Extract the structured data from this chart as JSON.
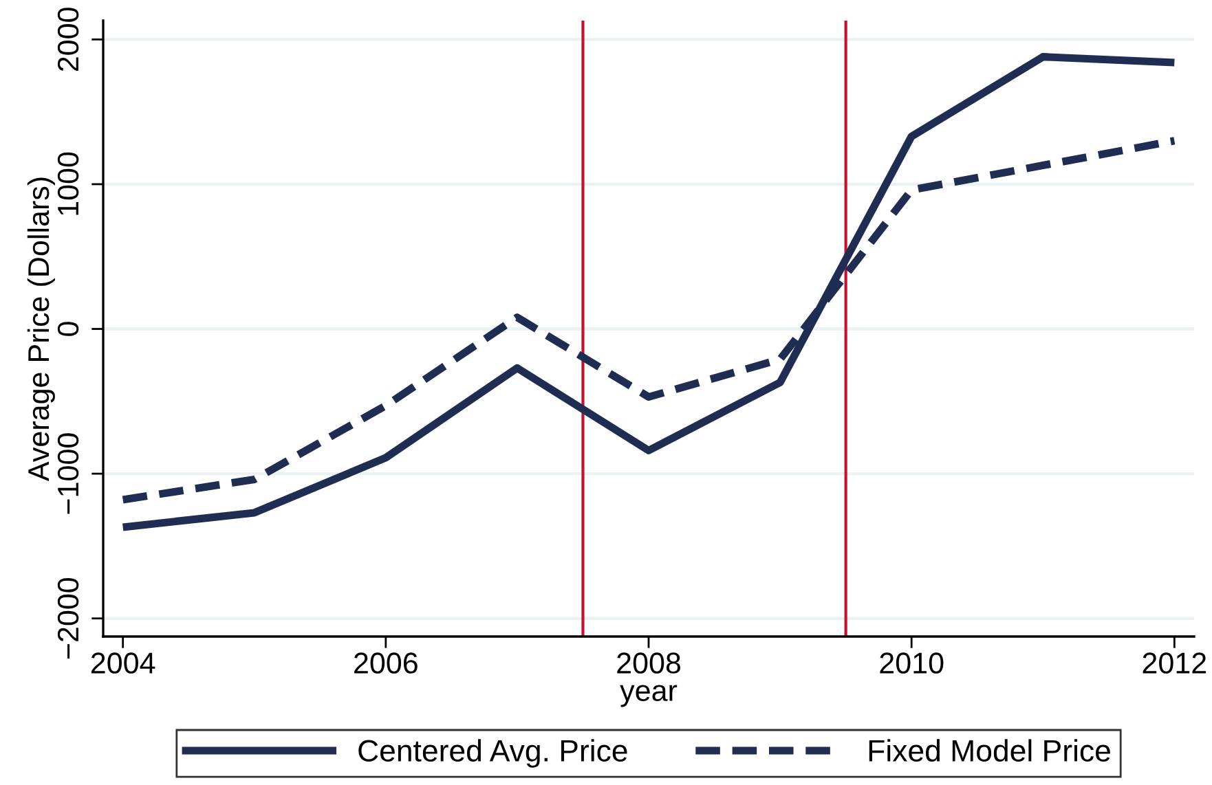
{
  "chart_data": {
    "type": "line",
    "x": [
      2004,
      2005,
      2006,
      2007,
      2008,
      2009,
      2010,
      2011,
      2012
    ],
    "series": [
      {
        "name": "Centered Avg. Price",
        "color": "#1f2d52",
        "line_style": "solid",
        "values": [
          -1370,
          -1270,
          -890,
          -270,
          -840,
          -370,
          1330,
          1880,
          1840
        ]
      },
      {
        "name": "Fixed Model Price",
        "color": "#1f2d52",
        "line_style": "dashed",
        "values": [
          -1180,
          -1040,
          -530,
          80,
          -470,
          -210,
          960,
          1130,
          1300
        ]
      }
    ],
    "xlabel": "year",
    "ylabel": "Average Price (Dollars)",
    "xlim": [
      2003.85,
      2012.15
    ],
    "xticks": [
      2004,
      2006,
      2008,
      2010,
      2012
    ],
    "ylim": [
      -2125,
      2130
    ],
    "yticks": [
      {
        "value": -2000,
        "label": "−2000"
      },
      {
        "value": -1000,
        "label": "−1000"
      },
      0,
      1000,
      2000
    ],
    "ref_lines": [
      {
        "axis": "x",
        "value": 2007.5,
        "color": "#c8102e"
      },
      {
        "axis": "x",
        "value": 2009.5,
        "color": "#c8102e"
      }
    ],
    "grid": "y",
    "legend": "bottom",
    "marker": "none"
  }
}
